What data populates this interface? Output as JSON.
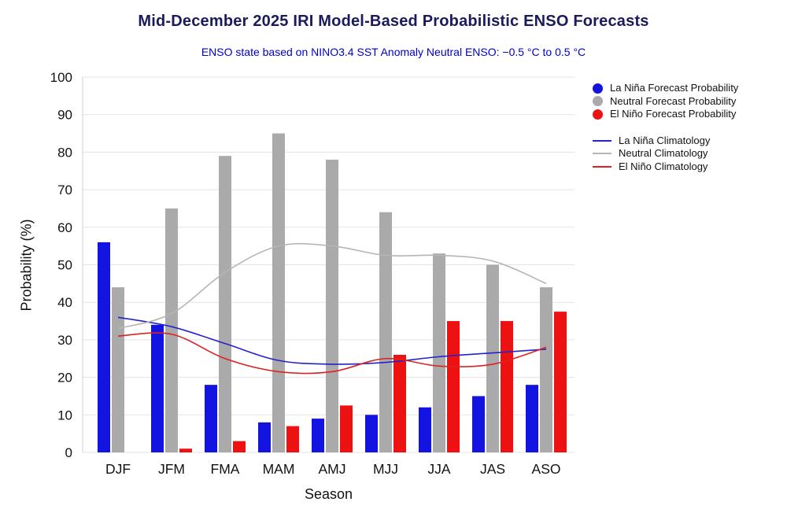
{
  "chart_data": {
    "type": "bar",
    "title": "Mid-December 2025 IRI Model-Based Probabilistic ENSO Forecasts",
    "subtitle": "ENSO state based on NINO3.4 SST Anomaly Neutral ENSO: −0.5 °C to 0.5 °C",
    "xlabel": "Season",
    "ylabel": "Probability (%)",
    "ylim": [
      0,
      100
    ],
    "ytick_step": 10,
    "grid": true,
    "legend_position": "right",
    "categories": [
      "DJF",
      "JFM",
      "FMA",
      "MAM",
      "AMJ",
      "MJJ",
      "JJA",
      "JAS",
      "ASO"
    ],
    "bar_series": [
      {
        "name": "La Niña Forecast Probability",
        "color": "#1414e0",
        "values": [
          56,
          34,
          18,
          8,
          9,
          10,
          12,
          15,
          18
        ]
      },
      {
        "name": "Neutral Forecast Probability",
        "color": "#aaaaaa",
        "values": [
          44,
          65,
          79,
          85,
          78,
          64,
          53,
          50,
          44
        ]
      },
      {
        "name": "El Niño Forecast Probability",
        "color": "#ee1111",
        "values": [
          0,
          1,
          3,
          7,
          12.5,
          26,
          35,
          35,
          37.5
        ]
      }
    ],
    "line_series": [
      {
        "name": "La Niña Climatology",
        "color": "#2323cc",
        "values": [
          36,
          33.5,
          29,
          24.5,
          23.5,
          24,
          25.5,
          26.5,
          27.5
        ]
      },
      {
        "name": "Neutral Climatology",
        "color": "#b5b5b5",
        "values": [
          33,
          37,
          48,
          55,
          55,
          52.5,
          52.5,
          51,
          45
        ]
      },
      {
        "name": "El Niño Climatology",
        "color": "#dd2222",
        "values": [
          31,
          31.5,
          25,
          21.5,
          21.5,
          25,
          23,
          23.5,
          28
        ]
      }
    ]
  }
}
